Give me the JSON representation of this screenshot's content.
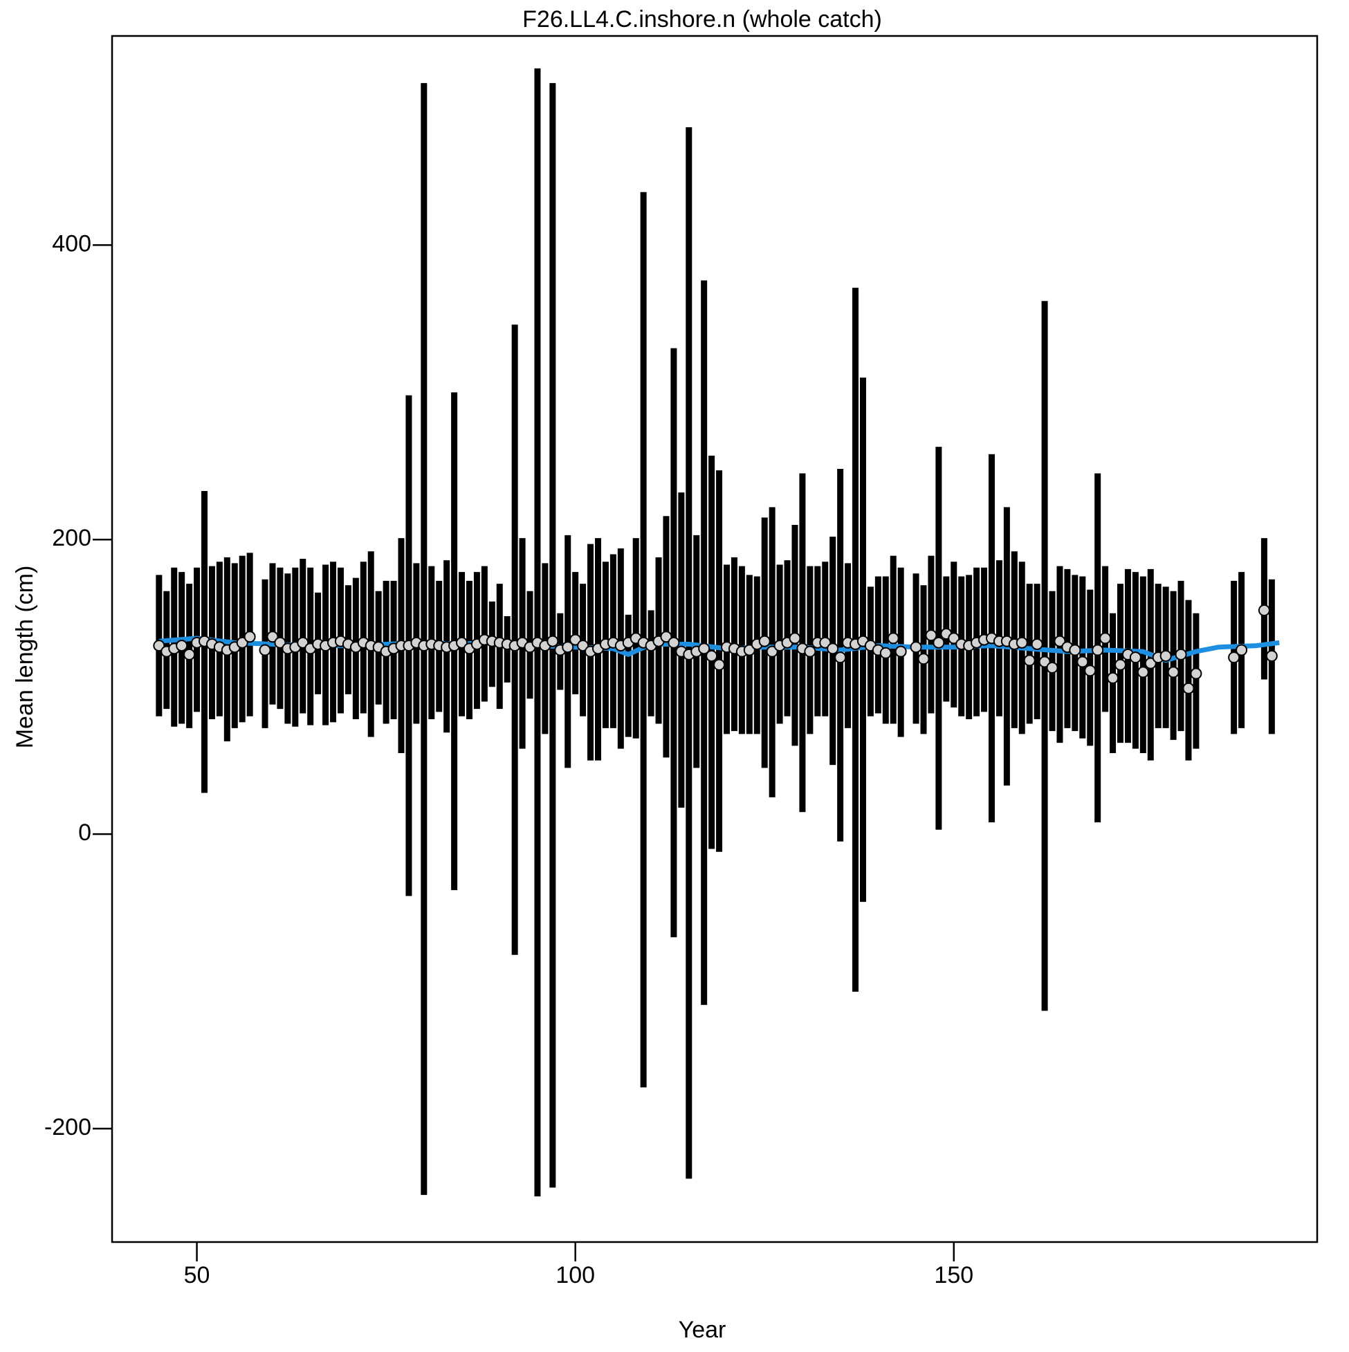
{
  "chart_data": {
    "type": "errorbar",
    "title": "F26.LL4.C.inshore.n (whole catch)",
    "xlabel": "Year",
    "ylabel": "Mean length (cm)",
    "xlim": [
      38.8,
      198
    ],
    "ylim": [
      -277,
      542
    ],
    "xticks": [
      50,
      100,
      150
    ],
    "yticks": [
      -200,
      0,
      200,
      400
    ],
    "bar_color": "#000000",
    "point_color": "#d3d3d3",
    "fit_color": "#1e8fe0",
    "x": [
      45,
      46,
      47,
      48,
      49,
      50,
      51,
      52,
      53,
      54,
      55,
      56,
      57,
      59,
      60,
      61,
      62,
      63,
      64,
      65,
      66,
      67,
      68,
      69,
      70,
      71,
      72,
      73,
      74,
      75,
      76,
      77,
      78,
      79,
      80,
      81,
      82,
      83,
      84,
      85,
      86,
      87,
      88,
      89,
      90,
      91,
      92,
      93,
      94,
      95,
      96,
      97,
      98,
      99,
      100,
      101,
      102,
      103,
      104,
      105,
      106,
      107,
      108,
      109,
      110,
      111,
      112,
      113,
      114,
      115,
      116,
      117,
      118,
      119,
      120,
      121,
      122,
      123,
      124,
      125,
      126,
      127,
      128,
      129,
      130,
      131,
      132,
      133,
      134,
      135,
      136,
      137,
      138,
      139,
      140,
      141,
      142,
      143,
      145,
      146,
      147,
      148,
      149,
      150,
      151,
      152,
      153,
      154,
      155,
      156,
      157,
      158,
      159,
      160,
      161,
      162,
      163,
      164,
      165,
      166,
      167,
      168,
      169,
      170,
      171,
      172,
      173,
      174,
      175,
      176,
      177,
      178,
      179,
      180,
      181,
      182,
      187,
      188,
      191,
      192
    ],
    "values": [
      128,
      124,
      126,
      128,
      122,
      130,
      131,
      129,
      127,
      125,
      127,
      130,
      134,
      125,
      134,
      130,
      126,
      127,
      130,
      126,
      129,
      128,
      130,
      131,
      129,
      127,
      130,
      128,
      127,
      124,
      126,
      128,
      128,
      130,
      128,
      129,
      128,
      127,
      128,
      130,
      126,
      129,
      132,
      131,
      130,
      129,
      128,
      130,
      127,
      130,
      128,
      131,
      125,
      127,
      132,
      128,
      124,
      126,
      129,
      130,
      128,
      130,
      133,
      130,
      128,
      131,
      134,
      130,
      124,
      122,
      124,
      126,
      121,
      115,
      127,
      126,
      124,
      125,
      129,
      131,
      124,
      128,
      130,
      133,
      126,
      124,
      130,
      130,
      126,
      120,
      130,
      129,
      131,
      128,
      125,
      123,
      133,
      124,
      127,
      119,
      135,
      130,
      136,
      133,
      129,
      128,
      130,
      132,
      133,
      131,
      131,
      129,
      130,
      118,
      129,
      117,
      113,
      131,
      127,
      125,
      117,
      111,
      125,
      133,
      106,
      115,
      122,
      120,
      110,
      116,
      120,
      121,
      110,
      122,
      99,
      109,
      120,
      125,
      152,
      121
    ],
    "lower": [
      80,
      85,
      73,
      75,
      72,
      83,
      28,
      78,
      80,
      63,
      72,
      76,
      80,
      72,
      88,
      85,
      75,
      73,
      82,
      74,
      95,
      74,
      76,
      82,
      95,
      78,
      82,
      66,
      88,
      75,
      78,
      55,
      -42,
      75,
      -245,
      78,
      83,
      69,
      -38,
      80,
      78,
      85,
      90,
      100,
      85,
      103,
      -82,
      58,
      92,
      -246,
      68,
      -240,
      98,
      45,
      95,
      80,
      50,
      50,
      72,
      72,
      58,
      66,
      65,
      -172,
      80,
      75,
      52,
      -70,
      18,
      -234,
      45,
      -116,
      -10,
      -12,
      68,
      70,
      68,
      68,
      68,
      45,
      25,
      75,
      80,
      60,
      15,
      68,
      80,
      80,
      47,
      -5,
      72,
      -107,
      -46,
      80,
      82,
      75,
      75,
      66,
      75,
      68,
      82,
      3,
      90,
      86,
      80,
      78,
      80,
      83,
      8,
      80,
      33,
      72,
      68,
      75,
      78,
      -120,
      70,
      62,
      72,
      70,
      65,
      60,
      8,
      83,
      55,
      62,
      62,
      58,
      55,
      50,
      72,
      72,
      64,
      70,
      50,
      58,
      68,
      72,
      105,
      68
    ],
    "upper": [
      176,
      165,
      181,
      178,
      170,
      181,
      233,
      182,
      185,
      188,
      184,
      189,
      191,
      173,
      184,
      181,
      177,
      181,
      187,
      181,
      164,
      183,
      185,
      181,
      169,
      174,
      185,
      192,
      165,
      172,
      172,
      201,
      298,
      184,
      510,
      182,
      172,
      186,
      300,
      178,
      172,
      178,
      182,
      158,
      170,
      148,
      346,
      201,
      165,
      520,
      184,
      510,
      150,
      203,
      178,
      170,
      197,
      201,
      185,
      190,
      194,
      149,
      201,
      436,
      152,
      188,
      216,
      330,
      232,
      480,
      203,
      376,
      257,
      247,
      183,
      188,
      182,
      176,
      175,
      215,
      222,
      183,
      186,
      210,
      245,
      182,
      182,
      185,
      202,
      248,
      184,
      371,
      310,
      168,
      175,
      175,
      189,
      181,
      177,
      169,
      189,
      263,
      175,
      185,
      175,
      176,
      181,
      181,
      258,
      186,
      222,
      192,
      185,
      170,
      170,
      362,
      165,
      182,
      180,
      176,
      175,
      166,
      245,
      182,
      150,
      170,
      180,
      178,
      175,
      180,
      170,
      168,
      165,
      172,
      159,
      150,
      172,
      178,
      201,
      173
    ],
    "fit": {
      "x": [
        45,
        50,
        55,
        60,
        65,
        70,
        75,
        80,
        85,
        90,
        95,
        100,
        105,
        107,
        110,
        115,
        120,
        125,
        130,
        135,
        140,
        145,
        150,
        155,
        160,
        165,
        170,
        175,
        178,
        182,
        185,
        190,
        193
      ],
      "values": [
        131,
        133,
        130,
        129,
        128,
        128,
        129,
        130,
        129,
        131,
        128,
        127,
        126,
        122,
        129,
        129,
        126,
        127,
        127,
        125,
        128,
        127,
        127,
        128,
        126,
        124,
        125,
        124,
        118,
        124,
        127,
        128,
        130
      ]
    }
  }
}
